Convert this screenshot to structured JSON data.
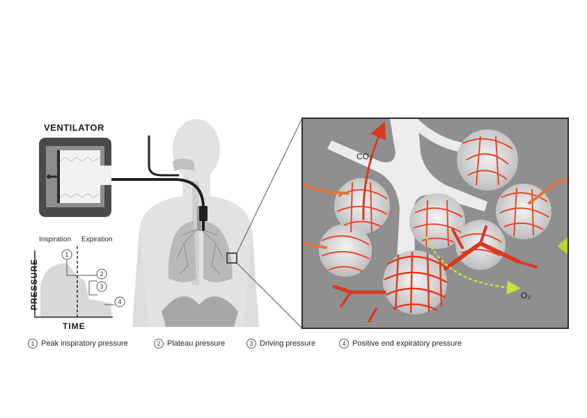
{
  "ventilator": {
    "title": "VENTILATOR"
  },
  "graph": {
    "inspiration_label": "Inspiration",
    "expiration_label": "Expiration",
    "y_label": "PRESSURE",
    "x_label": "TIME"
  },
  "inset": {
    "co2_label": "CO₂",
    "o2_label": "O₂"
  },
  "legend": [
    {
      "num": "1",
      "text": "Peak inspiratory pressure"
    },
    {
      "num": "2",
      "text": "Plateau pressure"
    },
    {
      "num": "3",
      "text": "Driving pressure"
    },
    {
      "num": "4",
      "text": "Positive end expiratory pressure"
    }
  ],
  "colors": {
    "capillary": "#e8462a",
    "airway": "#ebebeb",
    "inset_bg": "#8f8f8f",
    "o2_arrow": "#c8e23a"
  }
}
